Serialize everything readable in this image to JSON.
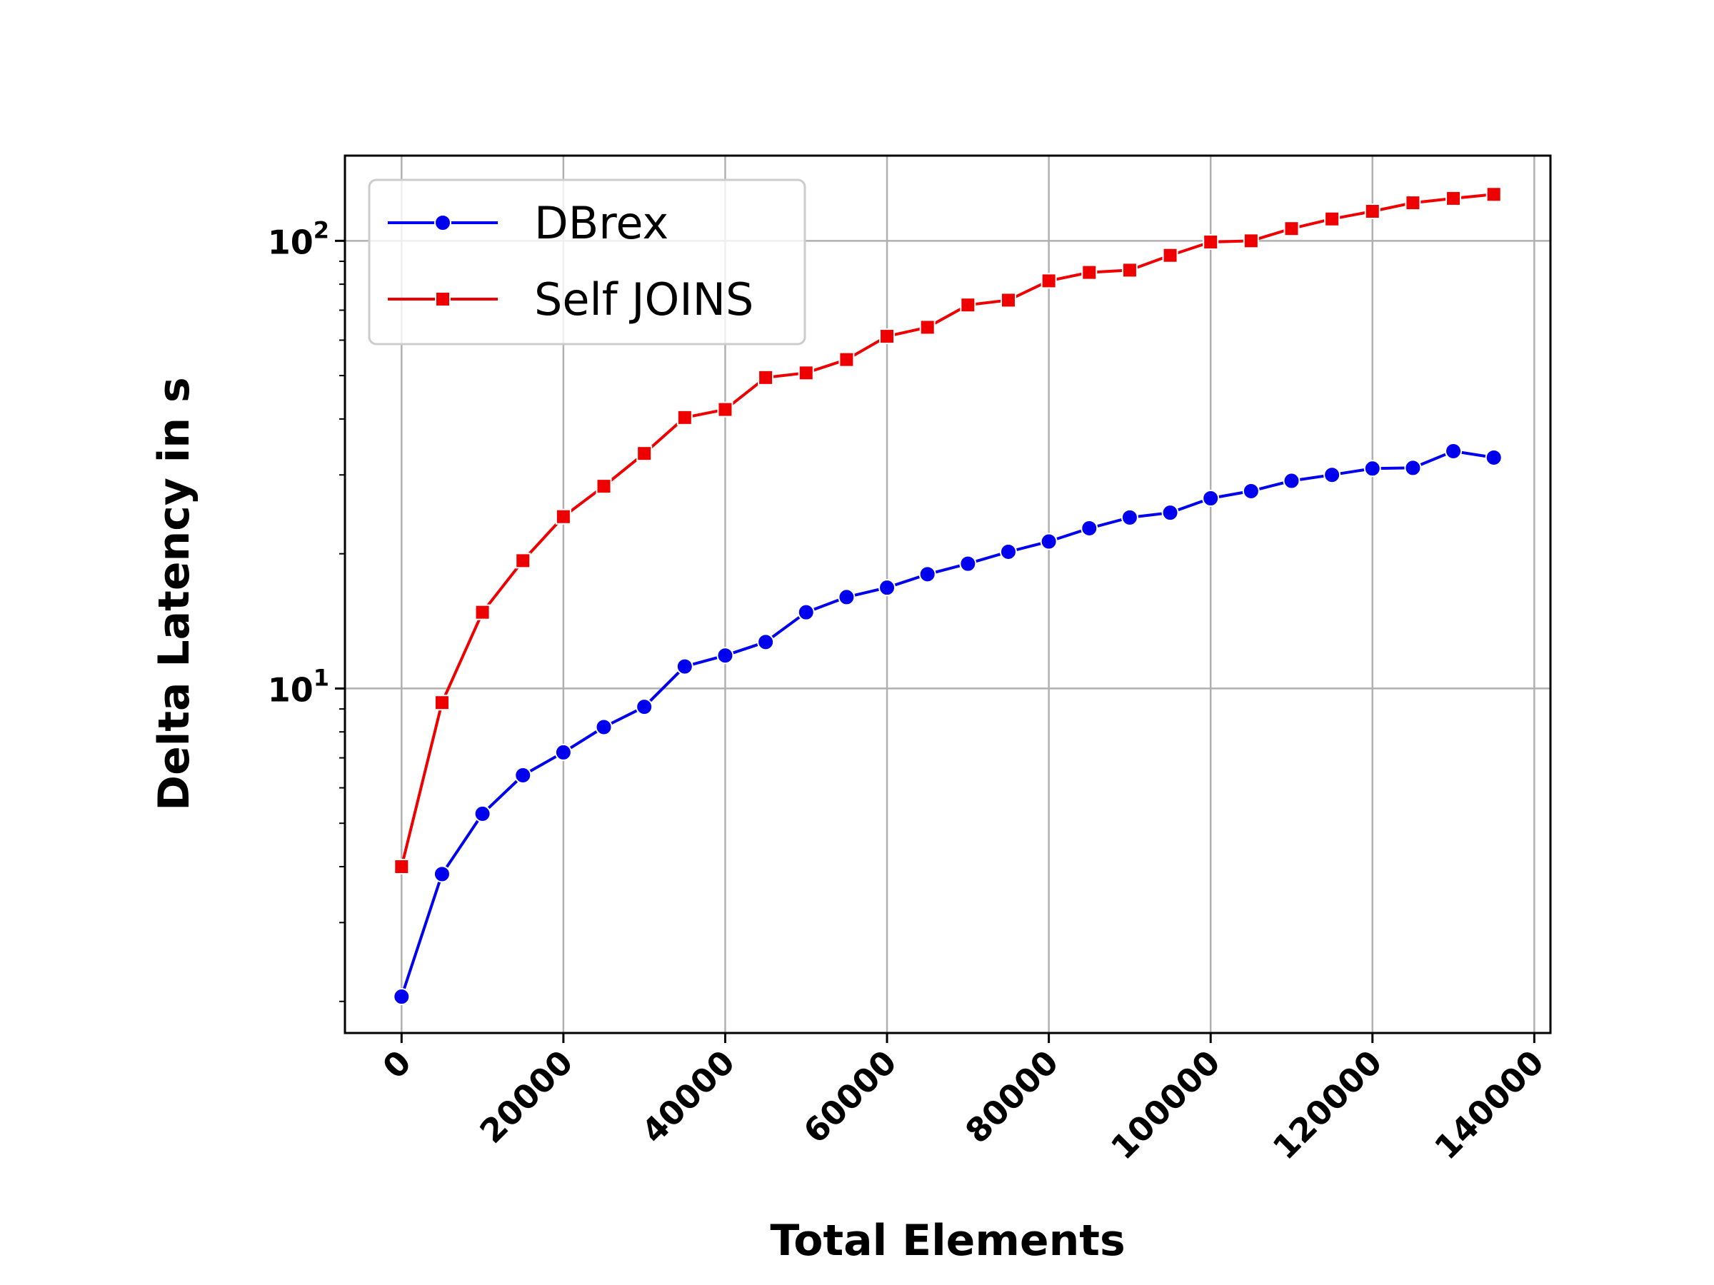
{
  "chart_data": {
    "type": "line",
    "xlabel": "Total Elements",
    "ylabel": "Delta Latency in s",
    "xlim": [
      -7000,
      142000
    ],
    "ylim": [
      1.7,
      155
    ],
    "yscale": "log",
    "grid": true,
    "legend_position": "top-left",
    "x_ticks": [
      "0",
      "20000",
      "40000",
      "60000",
      "80000",
      "100000",
      "120000",
      "140000"
    ],
    "x_tick_values": [
      0,
      20000,
      40000,
      60000,
      80000,
      100000,
      120000,
      140000
    ],
    "y_ticks": [
      {
        "value": 10,
        "base": "10",
        "exp": "1"
      },
      {
        "value": 100,
        "base": "10",
        "exp": "2"
      }
    ],
    "x": [
      0,
      5000,
      10000,
      15000,
      20000,
      25000,
      30000,
      35000,
      40000,
      45000,
      50000,
      55000,
      60000,
      65000,
      70000,
      75000,
      80000,
      85000,
      90000,
      95000,
      100000,
      105000,
      110000,
      115000,
      120000,
      125000,
      130000,
      135000
    ],
    "series": [
      {
        "name": "DBrex",
        "color": "#0000ee",
        "marker": "circle",
        "values": [
          2.05,
          3.85,
          5.25,
          6.4,
          7.2,
          8.2,
          9.1,
          11.2,
          11.85,
          12.7,
          14.8,
          16.0,
          16.8,
          18.0,
          19.0,
          20.2,
          21.3,
          22.8,
          24.1,
          24.7,
          26.6,
          27.6,
          29.1,
          30.0,
          31.0,
          31.1,
          33.9,
          32.8
        ]
      },
      {
        "name": "Self JOINS",
        "color": "#ee0000",
        "marker": "square",
        "values": [
          4.0,
          9.3,
          14.8,
          19.3,
          24.2,
          28.3,
          33.5,
          40.3,
          42.0,
          49.5,
          50.7,
          54.3,
          61.2,
          64.1,
          71.9,
          73.7,
          81.4,
          85.0,
          86.0,
          92.8,
          99.4,
          100.0,
          106.5,
          111.9,
          116.4,
          121.6,
          124.4,
          127.0
        ]
      }
    ]
  }
}
